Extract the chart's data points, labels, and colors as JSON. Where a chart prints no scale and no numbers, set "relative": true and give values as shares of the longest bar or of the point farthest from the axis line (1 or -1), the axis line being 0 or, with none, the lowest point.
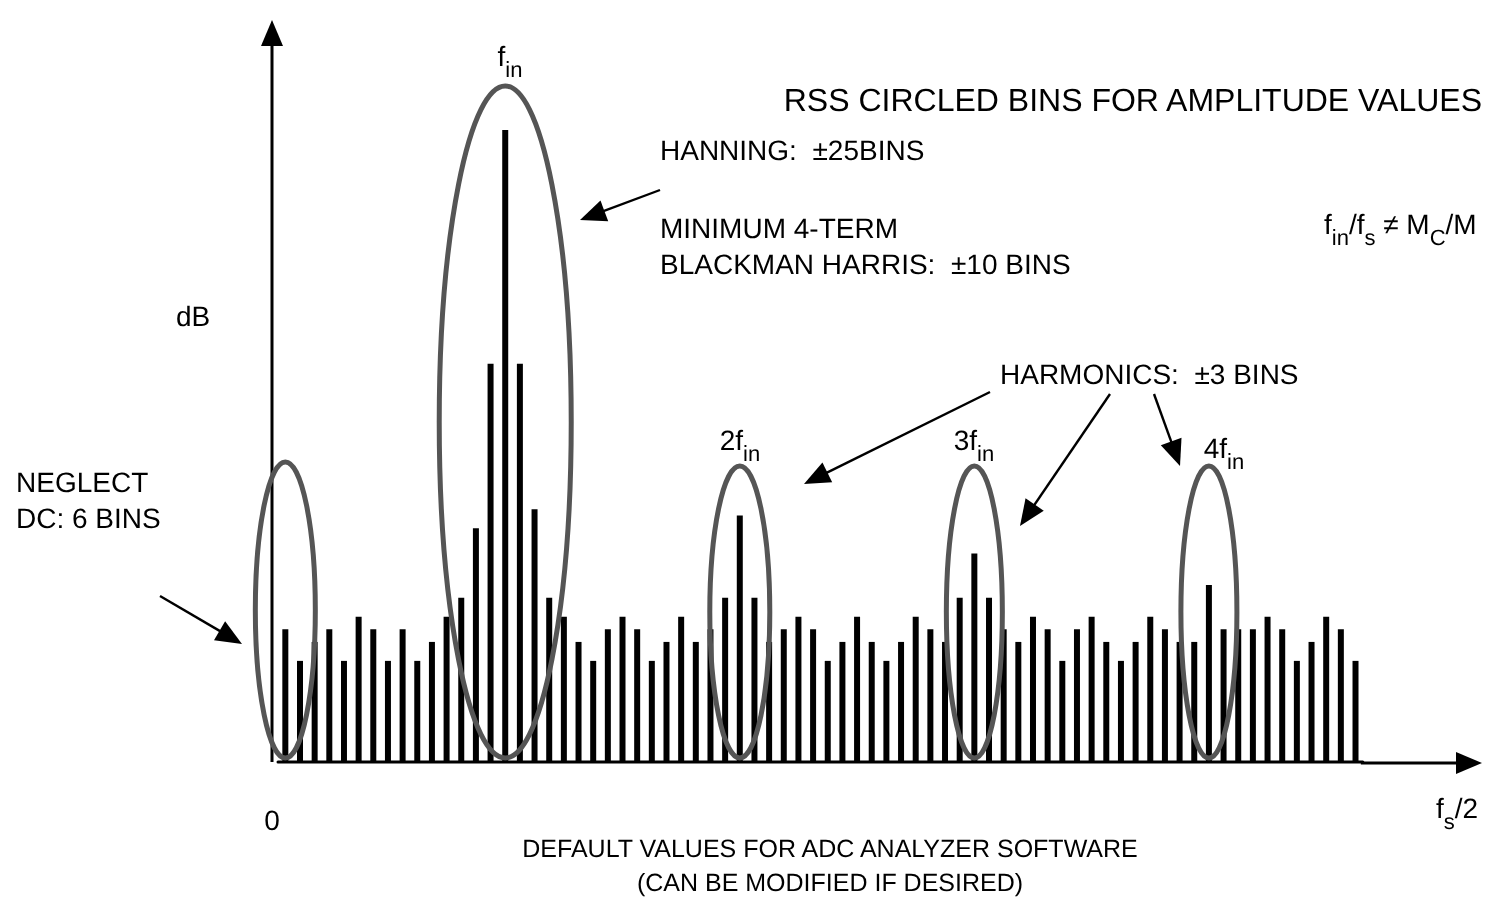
{
  "chart_data": {
    "type": "bar",
    "relative": true,
    "title": "RSS CIRCLED BINS FOR AMPLITUDE VALUES",
    "xlabel": "DEFAULT VALUES FOR ADC ANALYZER SOFTWARE\n(CAN BE MODIFIED IF DESIRED)",
    "ylabel": "dB",
    "categories": [
      null,
      null,
      null,
      null,
      null,
      null,
      null,
      null,
      null,
      null,
      null,
      null,
      null,
      null,
      null,
      null,
      null,
      null,
      null,
      null,
      null,
      null,
      null,
      null,
      null,
      null,
      null,
      null,
      null,
      null,
      null,
      null,
      null,
      null,
      null,
      null,
      null,
      null,
      null,
      null,
      null,
      null,
      null,
      null,
      null,
      null,
      null,
      null,
      null,
      null,
      null,
      null,
      null,
      null,
      null,
      null,
      null,
      null,
      null,
      null,
      null,
      null,
      null,
      null,
      null,
      null,
      null,
      null,
      null,
      null,
      null,
      null,
      null,
      null
    ],
    "values": [
      0.21,
      0.16,
      0.19,
      0.21,
      0.16,
      0.23,
      0.21,
      0.16,
      0.21,
      0.16,
      0.19,
      0.23,
      0.26,
      0.37,
      0.63,
      1,
      0.63,
      0.4,
      0.26,
      0.23,
      0.19,
      0.16,
      0.21,
      0.23,
      0.21,
      0.16,
      0.19,
      0.23,
      0.19,
      0.21,
      0.26,
      0.39,
      0.26,
      0.19,
      0.21,
      0.23,
      0.21,
      0.16,
      0.19,
      0.23,
      0.19,
      0.16,
      0.19,
      0.23,
      0.21,
      0.19,
      0.26,
      0.33,
      0.26,
      0.21,
      0.19,
      0.23,
      0.21,
      0.16,
      0.21,
      0.23,
      0.19,
      0.16,
      0.19,
      0.23,
      0.21,
      0.19,
      0.19,
      0.28,
      0.21,
      0.21,
      0.21,
      0.23,
      0.21,
      0.16,
      0.19,
      0.23,
      0.21,
      0.16
    ],
    "color": "#000000",
    "annotations": [
      "f$_{in}$",
      "HANNING:  ±25BINS",
      "MINIMUM 4-TERM\nBLACKMAN HARRIS:  ±10 BINS",
      "f$_{in}$/f$_{s}$ ≠ M$_{C}$/M",
      "HARMONICS:  ±3 BINS",
      "NEGLECT\nDC: 6 BINS",
      "2f$_{in}$",
      "3f$_{in}$",
      "4f$_{in}$",
      "0",
      "f$_{s}$/2"
    ]
  }
}
